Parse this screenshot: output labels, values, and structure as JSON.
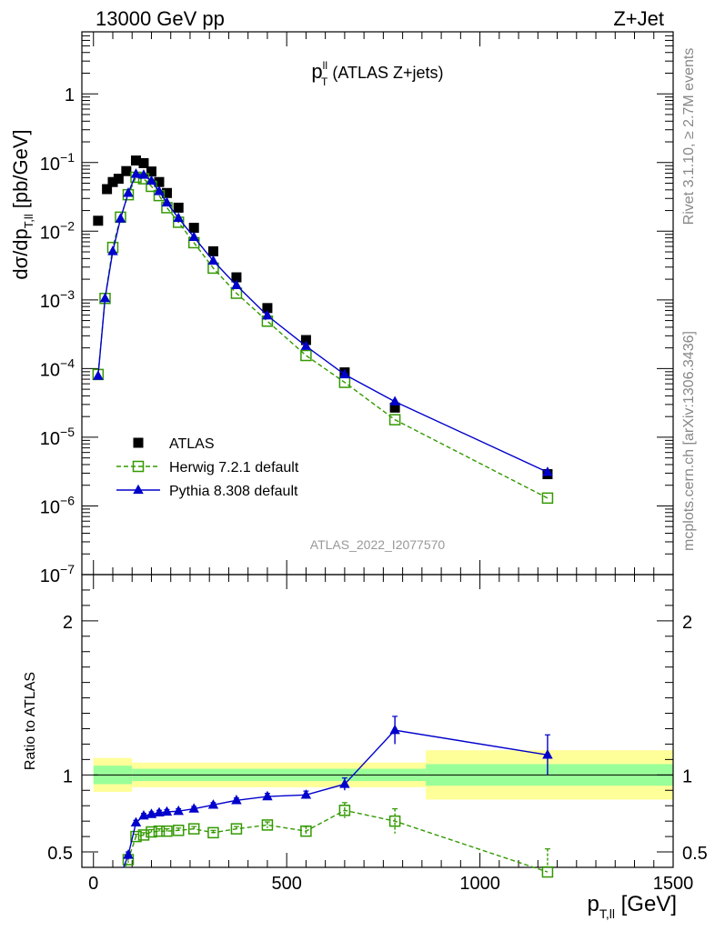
{
  "header": {
    "left": "13000 GeV pp",
    "right": "Z+Jet"
  },
  "side_labels": {
    "top": "Rivet 3.1.10, ≥ 2.7M events",
    "bottom": "mcplots.cern.ch [arXiv:1306.3436]"
  },
  "chart_data": [
    {
      "type": "scatter",
      "title_main": "p",
      "title_sup": "ll",
      "title_sub": "T",
      "title_rest": " (ATLAS Z+jets)",
      "ylabel": {
        "main": "dσ/dp",
        "sub": "T,ll",
        "unit": " [pb/GeV]"
      },
      "yscale": "log",
      "ylim": [
        1e-07,
        8
      ],
      "xlim": [
        -30,
        1500
      ],
      "yticks": [
        {
          "value": 1,
          "label": "1",
          "sup": ""
        },
        {
          "value": 0.1,
          "label": "10",
          "sup": "−1"
        },
        {
          "value": 0.01,
          "label": "10",
          "sup": "−2"
        },
        {
          "value": 0.001,
          "label": "10",
          "sup": "−3"
        },
        {
          "value": 0.0001,
          "label": "10",
          "sup": "−4"
        },
        {
          "value": 1e-05,
          "label": "10",
          "sup": "−5"
        },
        {
          "value": 1e-06,
          "label": "10",
          "sup": "−6"
        },
        {
          "value": 1e-07,
          "label": "10",
          "sup": "−7"
        }
      ],
      "watermark": "ATLAS_2022_I2077570",
      "legend_position": "lower-left",
      "series": [
        {
          "name": "ATLAS",
          "color": "#000000",
          "marker": "square",
          "points": [
            [
              12,
              0.0142
            ],
            [
              35,
              0.041
            ],
            [
              50,
              0.052
            ],
            [
              65,
              0.058
            ],
            [
              85,
              0.075
            ],
            [
              110,
              0.107
            ],
            [
              130,
              0.098
            ],
            [
              150,
              0.074
            ],
            [
              170,
              0.052
            ],
            [
              190,
              0.036
            ],
            [
              220,
              0.022
            ],
            [
              260,
              0.0112
            ],
            [
              310,
              0.0051
            ],
            [
              370,
              0.00213
            ],
            [
              450,
              0.00076
            ],
            [
              550,
              0.00026
            ],
            [
              650,
              8.8e-05
            ],
            [
              780,
              2.7e-05
            ],
            [
              1175,
              2.9e-06
            ]
          ]
        },
        {
          "name": "Herwig 7.2.1 default",
          "color": "#339900",
          "marker": "open-square",
          "dashed": true,
          "points": [
            [
              12,
              8.2e-05
            ],
            [
              30,
              0.00105
            ],
            [
              50,
              0.0058
            ],
            [
              70,
              0.016
            ],
            [
              90,
              0.034
            ],
            [
              110,
              0.061
            ],
            [
              130,
              0.058
            ],
            [
              150,
              0.045
            ],
            [
              170,
              0.033
            ],
            [
              190,
              0.022
            ],
            [
              220,
              0.0135
            ],
            [
              260,
              0.0068
            ],
            [
              310,
              0.0029
            ],
            [
              370,
              0.00125
            ],
            [
              450,
              0.00049
            ],
            [
              550,
              0.000155
            ],
            [
              650,
              6.3e-05
            ],
            [
              780,
              1.8e-05
            ],
            [
              1175,
              1.3e-06
            ]
          ]
        },
        {
          "name": "Pythia 8.308 default",
          "color": "#0000cc",
          "marker": "triangle",
          "points": [
            [
              12,
              7.8e-05
            ],
            [
              30,
              0.00105
            ],
            [
              50,
              0.0051
            ],
            [
              70,
              0.0152
            ],
            [
              90,
              0.036
            ],
            [
              110,
              0.068
            ],
            [
              130,
              0.066
            ],
            [
              150,
              0.054
            ],
            [
              170,
              0.038
            ],
            [
              190,
              0.026
            ],
            [
              220,
              0.0155
            ],
            [
              260,
              0.0082
            ],
            [
              310,
              0.0037
            ],
            [
              370,
              0.00163
            ],
            [
              450,
              0.00059
            ],
            [
              550,
              0.000212
            ],
            [
              650,
              8.2e-05
            ],
            [
              780,
              3.3e-05
            ],
            [
              1175,
              3.1e-06
            ]
          ]
        }
      ]
    },
    {
      "type": "line",
      "xlabel": {
        "main": "p",
        "sub": "T,ll",
        "unit": " [GeV]"
      },
      "ylabel": "Ratio to ATLAS",
      "ylim": [
        0.4,
        2.3
      ],
      "xlim": [
        -30,
        1500
      ],
      "yticks": [
        {
          "value": 0.5,
          "label": "0.5"
        },
        {
          "value": 1,
          "label": "1"
        },
        {
          "value": 2,
          "label": "2"
        }
      ],
      "xticks": [
        {
          "value": 0,
          "label": "0"
        },
        {
          "value": 500,
          "label": "500"
        },
        {
          "value": 1000,
          "label": "1000"
        },
        {
          "value": 1500,
          "label": "1500"
        }
      ],
      "bands": [
        {
          "x0": 0,
          "x1": 100,
          "inner": 0.06,
          "outer": 0.11
        },
        {
          "x0": 100,
          "x1": 860,
          "inner": 0.04,
          "outer": 0.08
        },
        {
          "x0": 860,
          "x1": 1500,
          "inner": 0.07,
          "outer": 0.16
        }
      ],
      "band_colors": {
        "inner": "#99ff99",
        "outer": "#ffff99"
      },
      "series": [
        {
          "name": "Herwig 7.2.1 default",
          "color": "#339900",
          "marker": "open-square",
          "dashed": true,
          "points": [
            [
              90,
              0.45,
              0.02
            ],
            [
              110,
              0.6,
              0.015
            ],
            [
              130,
              0.61,
              0.015
            ],
            [
              150,
              0.63,
              0.015
            ],
            [
              170,
              0.635,
              0.015
            ],
            [
              190,
              0.635,
              0.015
            ],
            [
              220,
              0.64,
              0.015
            ],
            [
              260,
              0.65,
              0.015
            ],
            [
              310,
              0.625,
              0.015
            ],
            [
              370,
              0.65,
              0.015
            ],
            [
              450,
              0.675,
              0.02
            ],
            [
              550,
              0.635,
              0.03
            ],
            [
              650,
              0.77,
              0.05
            ],
            [
              780,
              0.7,
              0.08
            ],
            [
              1175,
              0.37,
              0.15
            ]
          ],
          "start": [
            82,
            0.35
          ]
        },
        {
          "name": "Pythia 8.308 default",
          "color": "#0000cc",
          "marker": "triangle",
          "points": [
            [
              90,
              0.48,
              0.02
            ],
            [
              110,
              0.69,
              0.015
            ],
            [
              130,
              0.735,
              0.015
            ],
            [
              150,
              0.745,
              0.015
            ],
            [
              170,
              0.755,
              0.015
            ],
            [
              190,
              0.76,
              0.015
            ],
            [
              220,
              0.765,
              0.015
            ],
            [
              260,
              0.78,
              0.015
            ],
            [
              310,
              0.805,
              0.015
            ],
            [
              370,
              0.835,
              0.015
            ],
            [
              450,
              0.86,
              0.02
            ],
            [
              550,
              0.87,
              0.025
            ],
            [
              650,
              0.94,
              0.04
            ],
            [
              780,
              1.29,
              0.09
            ],
            [
              1175,
              1.13,
              0.13
            ]
          ],
          "start": [
            78,
            0.35
          ]
        }
      ]
    }
  ]
}
